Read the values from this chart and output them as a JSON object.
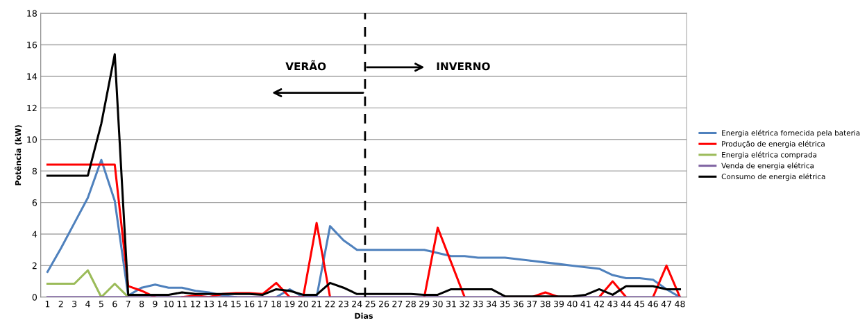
{
  "chart_data": {
    "type": "line",
    "xlabel": "Dias",
    "ylabel": "Potência (kW)",
    "x": [
      1,
      2,
      3,
      4,
      5,
      6,
      7,
      8,
      9,
      10,
      11,
      12,
      13,
      14,
      15,
      16,
      17,
      18,
      19,
      20,
      21,
      22,
      23,
      24,
      25,
      26,
      27,
      28,
      29,
      30,
      31,
      32,
      33,
      34,
      35,
      36,
      37,
      38,
      39,
      40,
      41,
      42,
      43,
      44,
      45,
      46,
      47,
      48
    ],
    "xlim": [
      0.5,
      48.5
    ],
    "xticks": [
      1,
      2,
      3,
      4,
      5,
      6,
      7,
      8,
      9,
      10,
      11,
      12,
      13,
      14,
      15,
      16,
      17,
      18,
      19,
      20,
      21,
      22,
      23,
      24,
      25,
      26,
      27,
      28,
      29,
      30,
      31,
      32,
      33,
      34,
      35,
      36,
      37,
      38,
      39,
      40,
      41,
      42,
      43,
      44,
      45,
      46,
      47,
      48
    ],
    "ylim": [
      0,
      18
    ],
    "yticks": [
      0,
      2,
      4,
      6,
      8,
      10,
      12,
      14,
      16,
      18
    ],
    "grid": "y",
    "legend": "right",
    "marker": "none",
    "line_style": "solid",
    "series": [
      {
        "name": "Energia elétrica fornecida pela bateria",
        "color": "#4f81bd",
        "values": [
          1.6,
          3.1,
          4.7,
          6.3,
          8.7,
          6.1,
          0.1,
          0.6,
          0.8,
          0.6,
          0.6,
          0.4,
          0.3,
          0.1,
          0,
          null,
          null,
          0,
          0.5,
          0,
          0,
          4.5,
          3.6,
          3.0,
          3.0,
          3.0,
          3.0,
          3.0,
          3.0,
          2.8,
          2.6,
          2.6,
          2.5,
          2.5,
          2.5,
          2.4,
          2.3,
          2.2,
          2.1,
          2.0,
          1.9,
          1.8,
          1.4,
          1.2,
          1.2,
          1.1,
          0.5,
          0
        ]
      },
      {
        "name": "Produção de energia elétrica",
        "color": "#ff0000",
        "values": [
          8.4,
          8.4,
          8.4,
          8.4,
          8.4,
          8.4,
          0.7,
          0.4,
          0,
          null,
          0,
          0.1,
          0,
          0.2,
          0.25,
          0.25,
          0.2,
          0.9,
          0,
          0,
          4.7,
          0,
          null,
          null,
          null,
          null,
          null,
          null,
          0,
          4.4,
          2.2,
          0,
          null,
          null,
          0,
          0,
          0,
          0.3,
          0,
          0,
          null,
          0,
          1.0,
          0,
          null,
          0,
          2.0,
          0
        ]
      },
      {
        "name": "Energia elétrica comprada",
        "color": "#9bbb59",
        "values": [
          0.85,
          0.85,
          0.85,
          1.7,
          0,
          0.85,
          0,
          null,
          null,
          null,
          null,
          null,
          null,
          null,
          null,
          null,
          null,
          null,
          null,
          null,
          null,
          null,
          null,
          null,
          null,
          null,
          null,
          null,
          null,
          null,
          null,
          null,
          null,
          null,
          null,
          null,
          null,
          null,
          null,
          null,
          null,
          null,
          null,
          null,
          null,
          null,
          null,
          null
        ]
      },
      {
        "name": "Venda de energia elétrica",
        "color": "#8064a2",
        "values": [
          0,
          0,
          0,
          0,
          0,
          0,
          0,
          0,
          0,
          0,
          0,
          0,
          0,
          0,
          0,
          0,
          0,
          0,
          0,
          0,
          0,
          0,
          0,
          0,
          0,
          0,
          0,
          0,
          0,
          0,
          0,
          0,
          0,
          0,
          0,
          0,
          0,
          0,
          0,
          0,
          0,
          0,
          0,
          0,
          0,
          0,
          0,
          0
        ]
      },
      {
        "name": "Consumo de energia elétrica",
        "color": "#000000",
        "values": [
          7.7,
          7.7,
          7.7,
          7.7,
          11.0,
          15.4,
          0.15,
          0.15,
          0.15,
          0.15,
          0.3,
          0.2,
          0.2,
          0.2,
          0.2,
          0.2,
          0.15,
          0.5,
          0.4,
          0.15,
          0.15,
          0.9,
          0.6,
          0.2,
          0.2,
          0.2,
          0.2,
          0.2,
          0.15,
          0.15,
          0.5,
          0.5,
          0.5,
          0.5,
          0.05,
          0.05,
          0.05,
          0.05,
          0.05,
          0.05,
          0.15,
          0.5,
          0.15,
          0.7,
          0.7,
          0.7,
          0.5,
          0.5
        ]
      }
    ],
    "ref_lines": [
      {
        "axis": "x",
        "value": 24.6,
        "color": "#000000",
        "line_style": "dashed"
      }
    ],
    "annotations": [
      "VERÃO",
      "INVERNO"
    ]
  }
}
